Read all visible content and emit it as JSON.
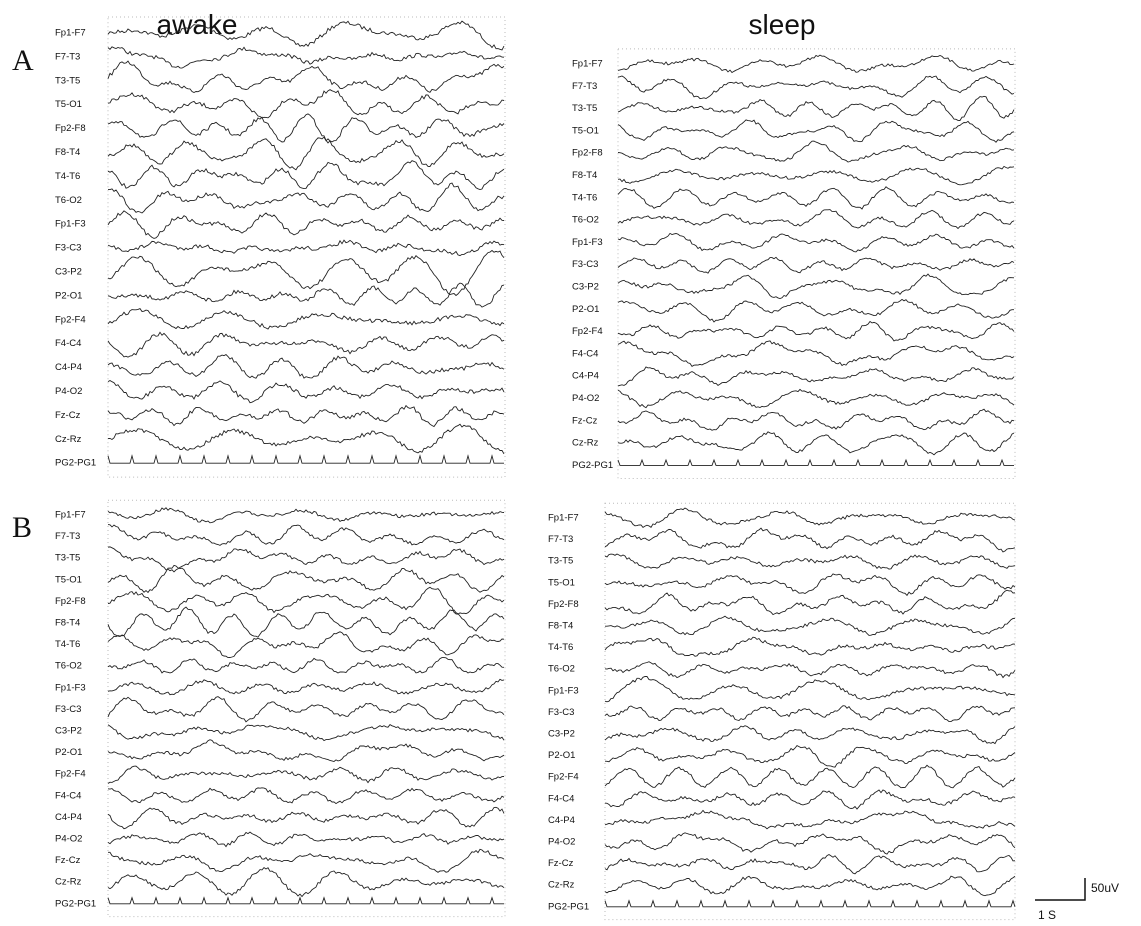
{
  "header": {
    "columns": [
      "awake",
      "sleep"
    ],
    "rows": [
      "A",
      "B"
    ]
  },
  "channels": [
    "Fp1-F7",
    "F7-T3",
    "T3-T5",
    "T5-O1",
    "Fp2-F8",
    "F8-T4",
    "T4-T6",
    "T6-O2",
    "Fp1-F3",
    "F3-C3",
    "C3-P2",
    "P2-O1",
    "Fp2-F4",
    "F4-C4",
    "C4-P4",
    "P4-O2",
    "Fz-Cz",
    "Cz-Rz",
    "PG2-PG1"
  ],
  "scale_bar": {
    "amplitude": "50uV",
    "time": "1 S"
  }
}
